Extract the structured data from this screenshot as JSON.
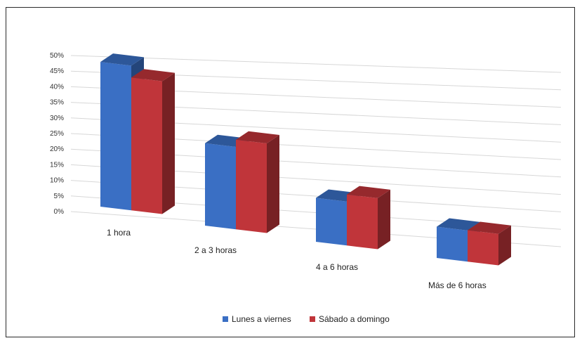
{
  "chart_data": {
    "type": "bar",
    "title": "",
    "xlabel": "",
    "ylabel": "",
    "categories": [
      "1 hora",
      "2 a 3 horas",
      "4 a 6 horas",
      "Más de 6 horas"
    ],
    "series": [
      {
        "name": "Lunes a viernes",
        "values": [
          45,
          25,
          13,
          9
        ],
        "color": "#3a6fc4"
      },
      {
        "name": "Sábado a domingo",
        "values": [
          41,
          27,
          15,
          9
        ],
        "color": "#c0353a"
      }
    ],
    "ylim": [
      0,
      50
    ],
    "yticks": [
      "0%",
      "5%",
      "10%",
      "15%",
      "20%",
      "25%",
      "30%",
      "35%",
      "40%",
      "45%",
      "50%"
    ],
    "grid": true,
    "legend_position": "bottom",
    "style": "3d-clustered-column"
  }
}
